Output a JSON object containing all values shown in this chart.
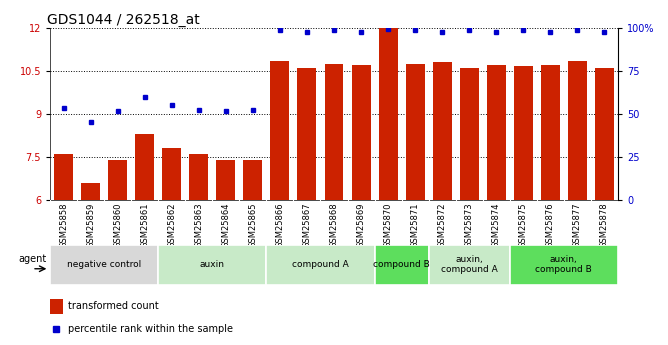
{
  "title": "GDS1044 / 262518_at",
  "samples": [
    "GSM25858",
    "GSM25859",
    "GSM25860",
    "GSM25861",
    "GSM25862",
    "GSM25863",
    "GSM25864",
    "GSM25865",
    "GSM25866",
    "GSM25867",
    "GSM25868",
    "GSM25869",
    "GSM25870",
    "GSM25871",
    "GSM25872",
    "GSM25873",
    "GSM25874",
    "GSM25875",
    "GSM25876",
    "GSM25877",
    "GSM25878"
  ],
  "bar_values": [
    7.6,
    6.6,
    7.4,
    8.3,
    7.8,
    7.6,
    7.4,
    7.4,
    10.85,
    10.6,
    10.75,
    10.7,
    12.0,
    10.75,
    10.8,
    10.6,
    10.7,
    10.65,
    10.7,
    10.85,
    10.6
  ],
  "dot_values": [
    9.2,
    8.7,
    9.1,
    9.6,
    9.3,
    9.15,
    9.1,
    9.15,
    11.9,
    11.85,
    11.9,
    11.85,
    11.95,
    11.9,
    11.85,
    11.9,
    11.85,
    11.9,
    11.85,
    11.9,
    11.85
  ],
  "ylim": [
    6,
    12
  ],
  "yticks": [
    6,
    7.5,
    9,
    10.5,
    12
  ],
  "ytick_labels_left": [
    "6",
    "7.5",
    "9",
    "10.5",
    "12"
  ],
  "ytick_labels_right": [
    "0",
    "25",
    "50",
    "75",
    "100%"
  ],
  "dotted_lines": [
    7.5,
    9.0,
    10.5,
    12.0
  ],
  "bar_color": "#cc2200",
  "dot_color": "#0000cc",
  "groups": [
    {
      "label": "negative control",
      "start": 0,
      "end": 4,
      "color": "#d8d8d8"
    },
    {
      "label": "auxin",
      "start": 4,
      "end": 8,
      "color": "#c8eac8"
    },
    {
      "label": "compound A",
      "start": 8,
      "end": 12,
      "color": "#c8eac8"
    },
    {
      "label": "compound B",
      "start": 12,
      "end": 14,
      "color": "#5dde5d"
    },
    {
      "label": "auxin,\ncompound A",
      "start": 14,
      "end": 17,
      "color": "#c8eac8"
    },
    {
      "label": "auxin,\ncompound B",
      "start": 17,
      "end": 21,
      "color": "#5dde5d"
    }
  ],
  "legend_bar_label": "transformed count",
  "legend_dot_label": "percentile rank within the sample",
  "agent_label": "agent",
  "title_fontsize": 10,
  "tick_fontsize": 7,
  "sample_fontsize": 6
}
